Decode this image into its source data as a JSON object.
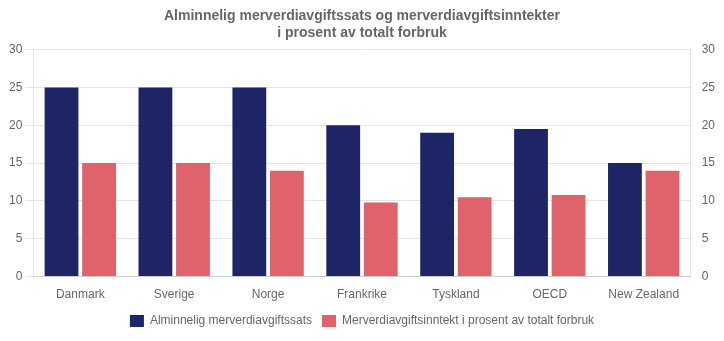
{
  "chart_data": {
    "type": "bar",
    "title": "Alminnelig merverdiavgiftssats og merverdiavgiftsinntekter\ni prosent av totalt forbruk",
    "categories": [
      "Danmark",
      "Sverige",
      "Norge",
      "Frankrike",
      "Tyskland",
      "OECD",
      "New Zealand"
    ],
    "series": [
      {
        "name": "Alminnelig merverdiavgiftssats",
        "color": "#1d2566",
        "values": [
          25,
          25,
          25,
          20,
          19,
          19.5,
          15
        ]
      },
      {
        "name": "Merverdiavgiftsinntekt i prosent av totalt forbruk",
        "color": "#e0626a",
        "values": [
          15,
          15,
          14,
          9.8,
          10.5,
          10.8,
          14
        ]
      }
    ],
    "ylim": [
      0,
      30
    ],
    "yticks": [
      0,
      5,
      10,
      15,
      20,
      25,
      30
    ],
    "y2lim": [
      0,
      30
    ],
    "y2ticks": [
      0,
      5,
      10,
      15,
      20,
      25,
      30
    ],
    "grid": true,
    "legend": "bottom"
  }
}
